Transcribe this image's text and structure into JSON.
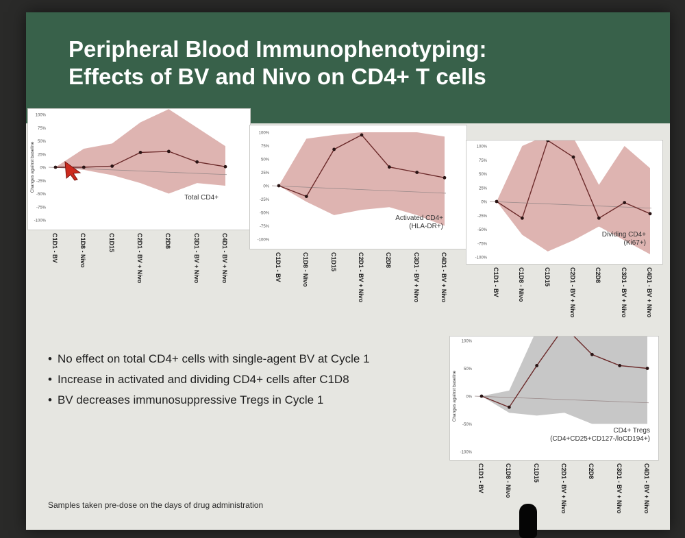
{
  "slide": {
    "title_line1": "Peripheral Blood Immunophenotyping:",
    "title_line2": "Effects of BV and Nivo on CD4+ T cells",
    "bullets": [
      "No effect on total CD4+ cells with single-agent BV at Cycle 1",
      "Increase in activated and dividing CD4+ cells after C1D8",
      "BV decreases immunosuppressive Tregs in Cycle 1"
    ],
    "footnote": "Samples taken pre-dose on the days of drug administration"
  },
  "colors": {
    "title_bar": "#38614a",
    "band_pink": "#d8a7a3",
    "band_gray": "#bdbdbd",
    "line": "#6b2a2a",
    "cursor": "#cc2a1e"
  },
  "chart_data": [
    {
      "type": "line",
      "label_lines": [
        "Total CD4+"
      ],
      "band_color": "pink",
      "ylabel": "Changes against baseline",
      "yticks": [
        "100%",
        "75%",
        "50%",
        "25%",
        "0%",
        "-25%",
        "-50%",
        "-75%",
        "-100%"
      ],
      "ylim": [
        -100,
        100
      ],
      "categories": [
        "C1D1 - BV",
        "C1D8 - Nivo",
        "C1D15",
        "C2D1 - BV + Nivo",
        "C2D8",
        "C3D1 - BV + Nivo",
        "C4D1 - BV + Nivo"
      ],
      "values": [
        0,
        0,
        2,
        28,
        30,
        10,
        1
      ],
      "band_upper": [
        0,
        35,
        45,
        85,
        110,
        75,
        40
      ],
      "band_lower": [
        0,
        -5,
        -15,
        -30,
        -50,
        -30,
        -35
      ]
    },
    {
      "type": "line",
      "label_lines": [
        "Activated CD4+",
        "(HLA-DR+)"
      ],
      "band_color": "pink",
      "yticks": [
        "100%",
        "75%",
        "50%",
        "25%",
        "0%",
        "-25%",
        "-50%",
        "-75%",
        "-100%"
      ],
      "ylim": [
        -100,
        100
      ],
      "categories": [
        "C1D1 - BV",
        "C1D8 - Nivo",
        "C1D15",
        "C2D1 - BV + Nivo",
        "C2D8",
        "C3D1 - BV + Nivo",
        "C4D1 - BV + Nivo"
      ],
      "values": [
        0,
        -20,
        68,
        95,
        35,
        25,
        15
      ],
      "band_upper": [
        0,
        88,
        95,
        100,
        100,
        100,
        92
      ],
      "band_lower": [
        0,
        -30,
        -55,
        -45,
        -40,
        -55,
        -75
      ]
    },
    {
      "type": "line",
      "label_lines": [
        "Dividing CD4+",
        "(Ki67+)"
      ],
      "band_color": "pink",
      "yticks": [
        "100%",
        "75%",
        "50%",
        "25%",
        "0%",
        "-25%",
        "-50%",
        "-75%",
        "-100%"
      ],
      "ylim": [
        -100,
        100
      ],
      "categories": [
        "C1D1 - BV",
        "C1D8 - Nivo",
        "C1D15",
        "C2D1 - BV + Nivo",
        "C2D8",
        "C3D1 - BV + Nivo",
        "C4D1 - BV + Nivo"
      ],
      "values": [
        0,
        -30,
        110,
        80,
        -30,
        -2,
        -22
      ],
      "band_upper": [
        0,
        100,
        120,
        115,
        30,
        100,
        60
      ],
      "band_lower": [
        0,
        -60,
        -90,
        -70,
        -45,
        -70,
        -95
      ]
    },
    {
      "type": "line",
      "label_lines": [
        "CD4+ Tregs",
        "(CD4+CD25+CD127-/loCD194+)"
      ],
      "band_color": "gray",
      "ylabel": "Changes against baseline",
      "yticks": [
        "100%",
        "50%",
        "0%",
        "-50%",
        "-100%"
      ],
      "ylim": [
        -100,
        100
      ],
      "categories": [
        "C1D1 - BV",
        "C1D8 - Nivo",
        "C1D15",
        "C2D1 - BV + Nivo",
        "C2D8",
        "C3D1 - BV + Nivo",
        "C4D1 - BV + Nivo"
      ],
      "values": [
        0,
        -20,
        55,
        125,
        75,
        55,
        50
      ],
      "band_upper": [
        0,
        10,
        120,
        140,
        140,
        140,
        140
      ],
      "band_lower": [
        0,
        -30,
        -35,
        -30,
        -50,
        -50,
        -50
      ]
    }
  ]
}
